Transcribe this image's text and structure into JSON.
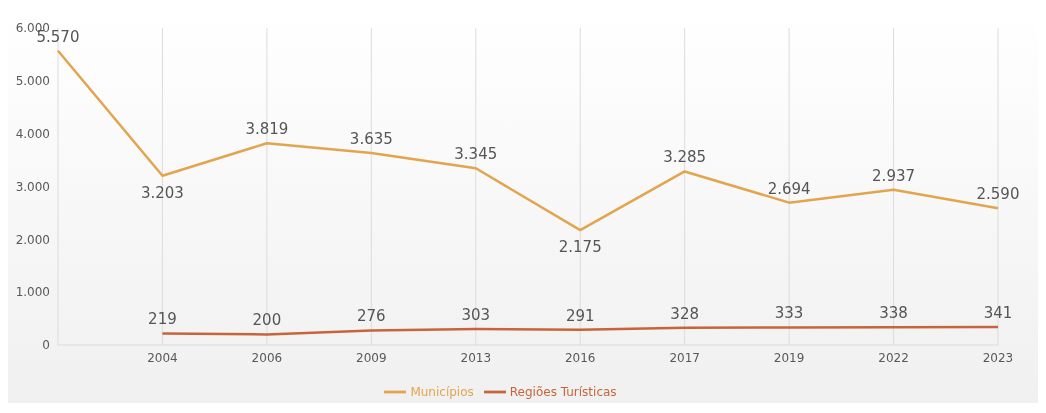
{
  "chart_data": {
    "type": "line",
    "categories": [
      null,
      "2004",
      "2006",
      "2009",
      "2013",
      "2016",
      "2017",
      "2019",
      "2022",
      "2023"
    ],
    "series": [
      {
        "name": "Municípios",
        "color": "#e2a54e",
        "values": [
          5570,
          3203,
          3819,
          3635,
          3345,
          2175,
          3285,
          2694,
          2937,
          2590
        ],
        "value_labels": [
          "5.570",
          "3.203",
          "3.819",
          "3.635",
          "3.345",
          "2.175",
          "3.285",
          "2.694",
          "2.937",
          "2.590"
        ]
      },
      {
        "name": "Regiões Turísticas",
        "color": "#c8643c",
        "values": [
          null,
          219,
          200,
          276,
          303,
          291,
          328,
          333,
          338,
          341
        ],
        "value_labels": [
          null,
          "219",
          "200",
          "276",
          "303",
          "291",
          "328",
          "333",
          "338",
          "341"
        ]
      }
    ],
    "ylim": [
      0,
      6000
    ],
    "yticks": [
      {
        "value": 0,
        "label": "0"
      },
      {
        "value": 1000,
        "label": "1.000"
      },
      {
        "value": 2000,
        "label": "2.000"
      },
      {
        "value": 3000,
        "label": "3.000"
      },
      {
        "value": 4000,
        "label": "4.000"
      },
      {
        "value": 5000,
        "label": "5.000"
      },
      {
        "value": 6000,
        "label": "6.000"
      }
    ],
    "grid": "x",
    "legend": "bottom",
    "marker": "none",
    "line_style": "solid"
  }
}
